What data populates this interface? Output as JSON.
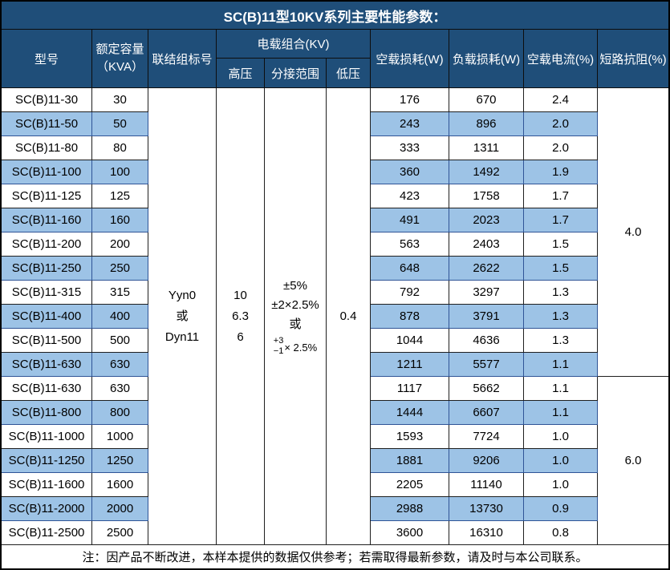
{
  "title": "SC(B)11型10KV系列主要性能参数：",
  "colors": {
    "header_bg": "#1F4E79",
    "row_alt_bg": "#9DC3E6",
    "header_text": "#ffffff",
    "body_text": "#000000",
    "shaded_border": "#2F5496"
  },
  "table": {
    "header": {
      "model": "型号",
      "capacity_line1": "额定容量",
      "capacity_line2": "（KVA）",
      "connection": "联结组标号",
      "voltage_group": "电载组合(KV)",
      "hv": "高压",
      "tap_range": "分接范围",
      "lv": "低压",
      "no_load_loss": "空载损耗(W)",
      "load_loss": "负载损耗(W)",
      "no_load_current": "空载电流(%)",
      "impedance": "短路抗阻(%)"
    },
    "merged": {
      "connection_lines": [
        "Yyn0",
        "或",
        "Dyn11"
      ],
      "hv_lines": [
        "10",
        "6.3",
        "6"
      ],
      "tap_lines": [
        "±5%",
        "±2×2.5%",
        "或"
      ],
      "tap_fraction": {
        "top": "+3",
        "bottom": "−1",
        "suffix": "× 2.5%"
      },
      "lv": "0.4",
      "impedance_group1": "4.0",
      "impedance_group2": "6.0"
    },
    "rows": [
      {
        "model": "SC(B)11-30",
        "capacity": "30",
        "no_load_loss": "176",
        "load_loss": "670",
        "no_load_current": "2.4",
        "shaded": false
      },
      {
        "model": "SC(B)11-50",
        "capacity": "50",
        "no_load_loss": "243",
        "load_loss": "896",
        "no_load_current": "2.0",
        "shaded": true
      },
      {
        "model": "SC(B)11-80",
        "capacity": "80",
        "no_load_loss": "333",
        "load_loss": "1311",
        "no_load_current": "2.0",
        "shaded": false
      },
      {
        "model": "SC(B)11-100",
        "capacity": "100",
        "no_load_loss": "360",
        "load_loss": "1492",
        "no_load_current": "1.9",
        "shaded": true
      },
      {
        "model": "SC(B)11-125",
        "capacity": "125",
        "no_load_loss": "423",
        "load_loss": "1758",
        "no_load_current": "1.7",
        "shaded": false
      },
      {
        "model": "SC(B)11-160",
        "capacity": "160",
        "no_load_loss": "491",
        "load_loss": "2023",
        "no_load_current": "1.7",
        "shaded": true
      },
      {
        "model": "SC(B)11-200",
        "capacity": "200",
        "no_load_loss": "563",
        "load_loss": "2403",
        "no_load_current": "1.5",
        "shaded": false
      },
      {
        "model": "SC(B)11-250",
        "capacity": "250",
        "no_load_loss": "648",
        "load_loss": "2622",
        "no_load_current": "1.5",
        "shaded": true
      },
      {
        "model": "SC(B)11-315",
        "capacity": "315",
        "no_load_loss": "792",
        "load_loss": "3297",
        "no_load_current": "1.3",
        "shaded": false
      },
      {
        "model": "SC(B)11-400",
        "capacity": "400",
        "no_load_loss": "878",
        "load_loss": "3791",
        "no_load_current": "1.3",
        "shaded": true
      },
      {
        "model": "SC(B)11-500",
        "capacity": "500",
        "no_load_loss": "1044",
        "load_loss": "4636",
        "no_load_current": "1.3",
        "shaded": false
      },
      {
        "model": "SC(B)11-630",
        "capacity": "630",
        "no_load_loss": "1211",
        "load_loss": "5577",
        "no_load_current": "1.1",
        "shaded": true
      },
      {
        "model": "SC(B)11-630",
        "capacity": "630",
        "no_load_loss": "1117",
        "load_loss": "5662",
        "no_load_current": "1.1",
        "shaded": false
      },
      {
        "model": "SC(B)11-800",
        "capacity": "800",
        "no_load_loss": "1444",
        "load_loss": "6607",
        "no_load_current": "1.1",
        "shaded": true
      },
      {
        "model": "SC(B)11-1000",
        "capacity": "1000",
        "no_load_loss": "1593",
        "load_loss": "7724",
        "no_load_current": "1.0",
        "shaded": false
      },
      {
        "model": "SC(B)11-1250",
        "capacity": "1250",
        "no_load_loss": "1881",
        "load_loss": "9206",
        "no_load_current": "1.0",
        "shaded": true
      },
      {
        "model": "SC(B)11-1600",
        "capacity": "1600",
        "no_load_loss": "2205",
        "load_loss": "11140",
        "no_load_current": "1.0",
        "shaded": false
      },
      {
        "model": "SC(B)11-2000",
        "capacity": "2000",
        "no_load_loss": "2988",
        "load_loss": "13730",
        "no_load_current": "0.9",
        "shaded": true
      },
      {
        "model": "SC(B)11-2500",
        "capacity": "2500",
        "no_load_loss": "3600",
        "load_loss": "16310",
        "no_load_current": "0.8",
        "shaded": false
      }
    ]
  },
  "footer": "注：因产品不断改进，本样本提供的数据仅供参考；若需取得最新参数，请及时与本公司联系。"
}
